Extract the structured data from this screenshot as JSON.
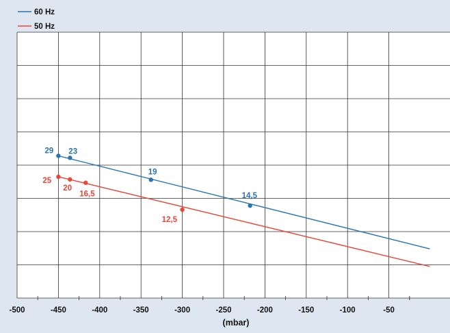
{
  "chart_data": {
    "type": "line",
    "xlabel": "(mbar)",
    "ylabel": "",
    "xlim": [
      -500,
      0
    ],
    "x_ticks": [
      -500,
      -450,
      -400,
      -350,
      -300,
      -250,
      -200,
      -150,
      -100,
      -50
    ],
    "x_tick_labels": [
      "-500",
      "-450",
      "-400",
      "-350",
      "-300",
      "-250",
      "-200",
      "-150",
      "-100",
      "-50"
    ],
    "grid": true,
    "legend_position": "top-left",
    "series": [
      {
        "name": "60 Hz",
        "color": "#2a74b0",
        "x": [
          -450,
          -0.5
        ],
        "y": [
          4.28,
          1.48
        ],
        "points": [
          {
            "x": -450,
            "y": 4.28,
            "label": "29"
          },
          {
            "x": -436,
            "y": 4.22,
            "label": "23"
          },
          {
            "x": -338,
            "y": 3.56,
            "label": "19"
          },
          {
            "x": -218,
            "y": 2.78,
            "label": "14,5"
          }
        ]
      },
      {
        "name": "50 Hz",
        "color": "#e8473a",
        "x": [
          -450,
          -0.5
        ],
        "y": [
          3.65,
          0.95
        ],
        "points": [
          {
            "x": -450,
            "y": 3.65,
            "label": "25"
          },
          {
            "x": -436,
            "y": 3.57,
            "label": "20"
          },
          {
            "x": -417,
            "y": 3.47,
            "label": "16,5"
          },
          {
            "x": -300,
            "y": 2.66,
            "label": "12,5"
          }
        ]
      }
    ]
  }
}
